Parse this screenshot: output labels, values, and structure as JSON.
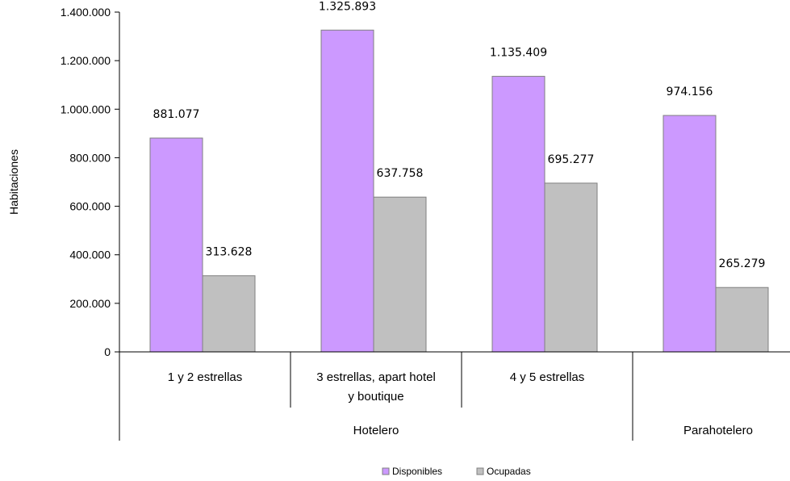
{
  "chart_data": {
    "type": "bar",
    "ylabel": "Habitaciones",
    "ylim": [
      0,
      1400000
    ],
    "yticks": [
      0,
      200000,
      400000,
      600000,
      800000,
      1000000,
      1200000,
      1400000
    ],
    "ytick_labels": [
      "0",
      "200.000",
      "400.000",
      "600.000",
      "800.000",
      "1.000.000",
      "1.200.000",
      "1.400.000"
    ],
    "categories": [
      [
        "1 y 2 estrellas"
      ],
      [
        "3 estrellas, apart hotel",
        "y boutique"
      ],
      [
        "4 y 5 estrellas"
      ],
      [
        ""
      ]
    ],
    "groups": [
      {
        "label": "Hotelero",
        "span": 3
      },
      {
        "label": "Parahotelero",
        "span": 1
      }
    ],
    "series": [
      {
        "name": "Disponibles",
        "color": "#cc99ff",
        "values": [
          881077,
          1325893,
          1135409,
          974156
        ],
        "labels": [
          "881.077",
          "1.325.893",
          "1.135.409",
          "974.156"
        ]
      },
      {
        "name": "Ocupadas",
        "color": "#c0c0c0",
        "values": [
          313628,
          637758,
          695277,
          265279
        ],
        "labels": [
          "313.628",
          "637.758",
          "695.277",
          "265.279"
        ]
      }
    ],
    "grid": false,
    "legend_position": "bottom"
  }
}
